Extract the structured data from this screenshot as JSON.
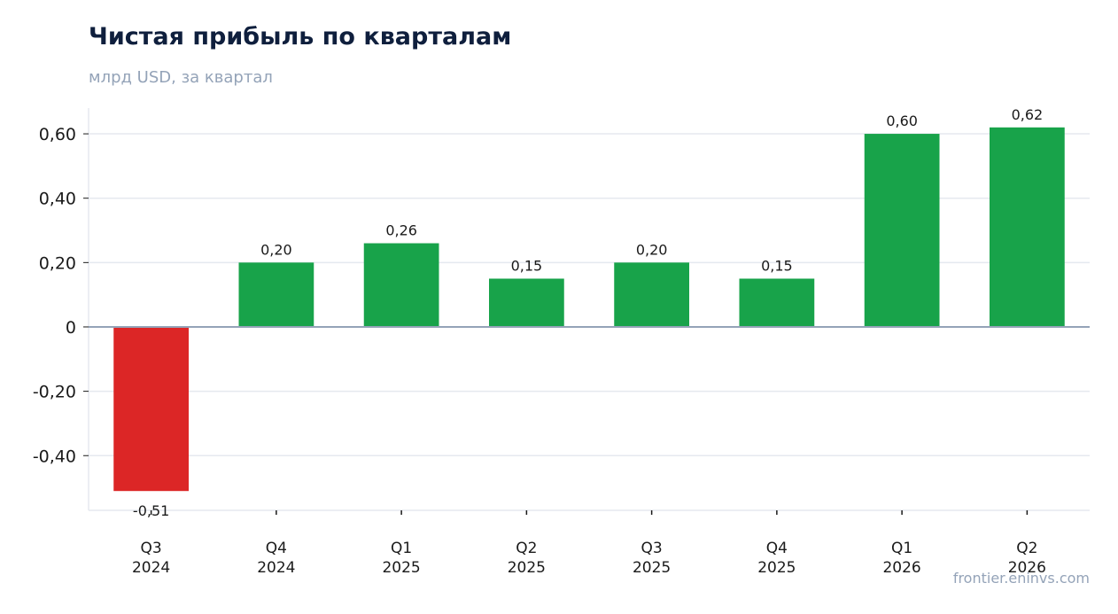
{
  "header": {
    "title": "Чистая прибыль по кварталам",
    "subtitle": "млрд USD, за квартал"
  },
  "footer": {
    "source": "frontier.eninvs.com"
  },
  "colors": {
    "positive": "#18a34a",
    "negative": "#dc2626",
    "grid": "#e5e9ef",
    "zero_line": "#94a3b8",
    "title": "#0f1f3d",
    "muted": "#94a3b8"
  },
  "chart_data": {
    "type": "bar",
    "title": "Чистая прибыль по кварталам",
    "subtitle": "млрд USD, за квартал",
    "xlabel": "",
    "ylabel": "",
    "categories": [
      [
        "Q3",
        "2024"
      ],
      [
        "Q4",
        "2024"
      ],
      [
        "Q1",
        "2025"
      ],
      [
        "Q2",
        "2025"
      ],
      [
        "Q3",
        "2025"
      ],
      [
        "Q4",
        "2025"
      ],
      [
        "Q1",
        "2026"
      ],
      [
        "Q2",
        "2026"
      ]
    ],
    "values": [
      -0.51,
      0.2,
      0.26,
      0.15,
      0.2,
      0.15,
      0.6,
      0.62
    ],
    "value_labels": [
      "-0,51",
      "0,20",
      "0,26",
      "0,15",
      "0,20",
      "0,15",
      "0,60",
      "0,62"
    ],
    "yticks": [
      -0.4,
      -0.2,
      0,
      0.2,
      0.4,
      0.6
    ],
    "ytick_labels": [
      "-0,40",
      "-0,20",
      "0",
      "0,20",
      "0,40",
      "0,60"
    ],
    "ylim": [
      -0.57,
      0.68
    ],
    "grid": true,
    "legend": "none"
  }
}
